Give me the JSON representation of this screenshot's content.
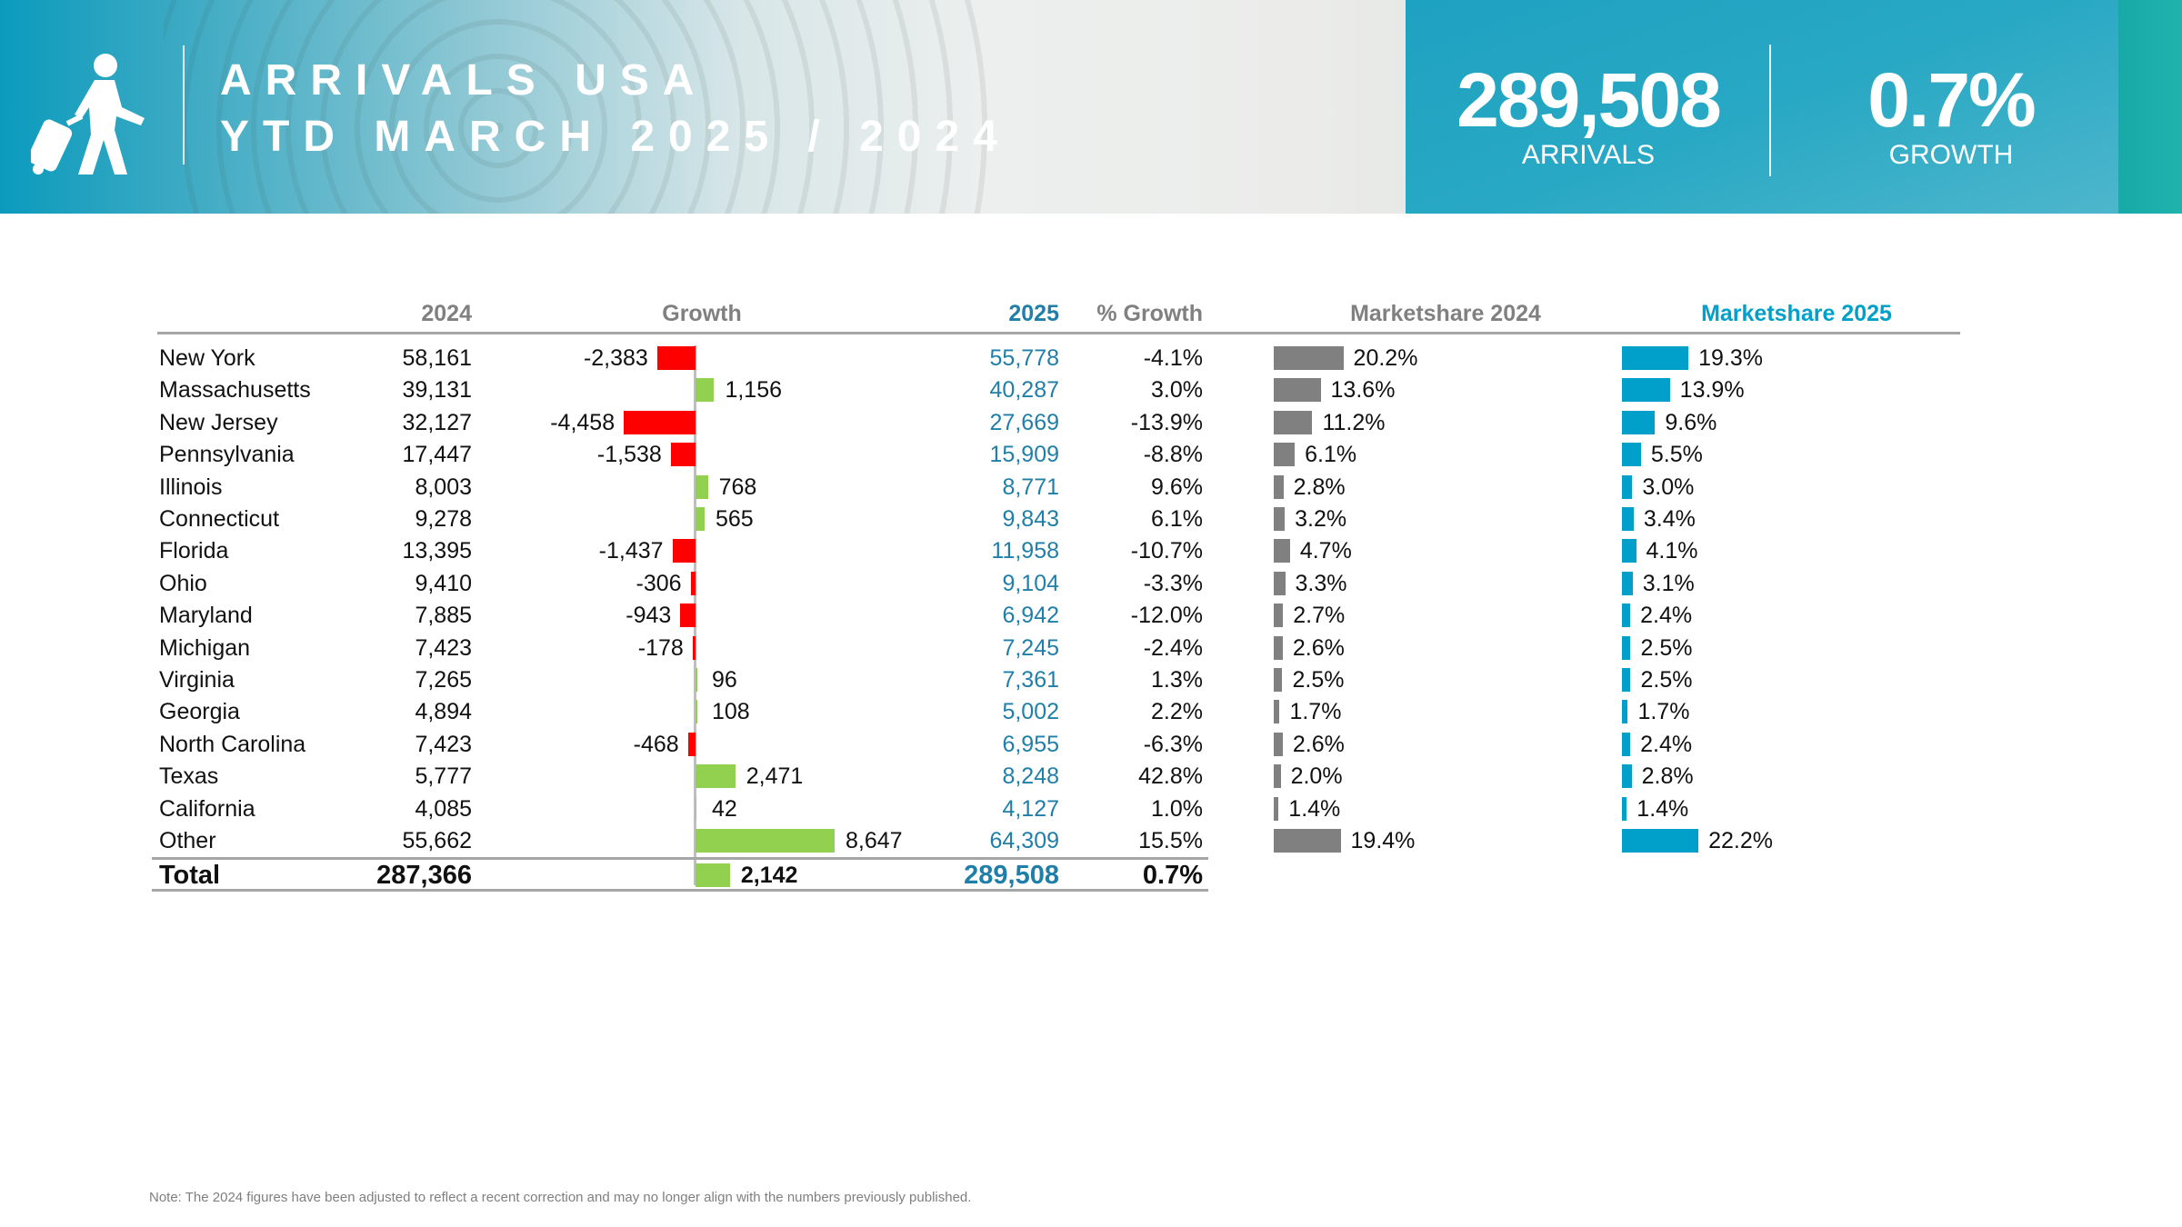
{
  "header": {
    "title_line1": "ARRIVALS USA",
    "title_line2": "YTD MARCH 2025 / 2024",
    "icon": "traveler-with-suitcase-icon",
    "kpis": [
      {
        "value": "289,508",
        "label": "ARRIVALS"
      },
      {
        "value": "0.7%",
        "label": "GROWTH"
      }
    ]
  },
  "colors": {
    "negative": "#ff0000",
    "positive": "#92d050",
    "share2024": "#808080",
    "share2025": "#00a0cb",
    "value2025": "#1f7fa8"
  },
  "table": {
    "headers": {
      "y2024": "2024",
      "growth": "Growth",
      "y2025": "2025",
      "pct_growth": "% Growth",
      "share2024": "Marketshare 2024",
      "share2025": "Marketshare 2025"
    },
    "rows": [
      {
        "name": "New York",
        "v2024": "58,161",
        "growth": -2383,
        "growth_label": "-2,383",
        "v2025": "55,778",
        "pct": "-4.1%",
        "s24": 20.2,
        "s24_label": "20.2%",
        "s25": 19.3,
        "s25_label": "19.3%"
      },
      {
        "name": "Massachusetts",
        "v2024": "39,131",
        "growth": 1156,
        "growth_label": "1,156",
        "v2025": "40,287",
        "pct": "3.0%",
        "s24": 13.6,
        "s24_label": "13.6%",
        "s25": 13.9,
        "s25_label": "13.9%"
      },
      {
        "name": "New Jersey",
        "v2024": "32,127",
        "growth": -4458,
        "growth_label": "-4,458",
        "v2025": "27,669",
        "pct": "-13.9%",
        "s24": 11.2,
        "s24_label": "11.2%",
        "s25": 9.6,
        "s25_label": "9.6%"
      },
      {
        "name": "Pennsylvania",
        "v2024": "17,447",
        "growth": -1538,
        "growth_label": "-1,538",
        "v2025": "15,909",
        "pct": "-8.8%",
        "s24": 6.1,
        "s24_label": "6.1%",
        "s25": 5.5,
        "s25_label": "5.5%"
      },
      {
        "name": "Illinois",
        "v2024": "8,003",
        "growth": 768,
        "growth_label": "768",
        "v2025": "8,771",
        "pct": "9.6%",
        "s24": 2.8,
        "s24_label": "2.8%",
        "s25": 3.0,
        "s25_label": "3.0%"
      },
      {
        "name": "Connecticut",
        "v2024": "9,278",
        "growth": 565,
        "growth_label": "565",
        "v2025": "9,843",
        "pct": "6.1%",
        "s24": 3.2,
        "s24_label": "3.2%",
        "s25": 3.4,
        "s25_label": "3.4%"
      },
      {
        "name": "Florida",
        "v2024": "13,395",
        "growth": -1437,
        "growth_label": "-1,437",
        "v2025": "11,958",
        "pct": "-10.7%",
        "s24": 4.7,
        "s24_label": "4.7%",
        "s25": 4.1,
        "s25_label": "4.1%"
      },
      {
        "name": "Ohio",
        "v2024": "9,410",
        "growth": -306,
        "growth_label": "-306",
        "v2025": "9,104",
        "pct": "-3.3%",
        "s24": 3.3,
        "s24_label": "3.3%",
        "s25": 3.1,
        "s25_label": "3.1%"
      },
      {
        "name": "Maryland",
        "v2024": "7,885",
        "growth": -943,
        "growth_label": "-943",
        "v2025": "6,942",
        "pct": "-12.0%",
        "s24": 2.7,
        "s24_label": "2.7%",
        "s25": 2.4,
        "s25_label": "2.4%"
      },
      {
        "name": "Michigan",
        "v2024": "7,423",
        "growth": -178,
        "growth_label": "-178",
        "v2025": "7,245",
        "pct": "-2.4%",
        "s24": 2.6,
        "s24_label": "2.6%",
        "s25": 2.5,
        "s25_label": "2.5%"
      },
      {
        "name": "Virginia",
        "v2024": "7,265",
        "growth": 96,
        "growth_label": "96",
        "v2025": "7,361",
        "pct": "1.3%",
        "s24": 2.5,
        "s24_label": "2.5%",
        "s25": 2.5,
        "s25_label": "2.5%"
      },
      {
        "name": "Georgia",
        "v2024": "4,894",
        "growth": 108,
        "growth_label": "108",
        "v2025": "5,002",
        "pct": "2.2%",
        "s24": 1.7,
        "s24_label": "1.7%",
        "s25": 1.7,
        "s25_label": "1.7%"
      },
      {
        "name": "North Carolina",
        "v2024": "7,423",
        "growth": -468,
        "growth_label": "-468",
        "v2025": "6,955",
        "pct": "-6.3%",
        "s24": 2.6,
        "s24_label": "2.6%",
        "s25": 2.4,
        "s25_label": "2.4%"
      },
      {
        "name": "Texas",
        "v2024": "5,777",
        "growth": 2471,
        "growth_label": "2,471",
        "v2025": "8,248",
        "pct": "42.8%",
        "s24": 2.0,
        "s24_label": "2.0%",
        "s25": 2.8,
        "s25_label": "2.8%"
      },
      {
        "name": "California",
        "v2024": "4,085",
        "growth": 42,
        "growth_label": "42",
        "v2025": "4,127",
        "pct": "1.0%",
        "s24": 1.4,
        "s24_label": "1.4%",
        "s25": 1.4,
        "s25_label": "1.4%"
      },
      {
        "name": "Other",
        "v2024": "55,662",
        "growth": 8647,
        "growth_label": "8,647",
        "v2025": "64,309",
        "pct": "15.5%",
        "s24": 19.4,
        "s24_label": "19.4%",
        "s25": 22.2,
        "s25_label": "22.2%"
      }
    ],
    "total": {
      "name": "Total",
      "v2024": "287,366",
      "growth": 2142,
      "growth_label": "2,142",
      "v2025": "289,508",
      "pct": "0.7%"
    }
  },
  "note": "Note: The 2024 figures have been adjusted to reflect a recent correction and may no longer align with the numbers previously published."
}
